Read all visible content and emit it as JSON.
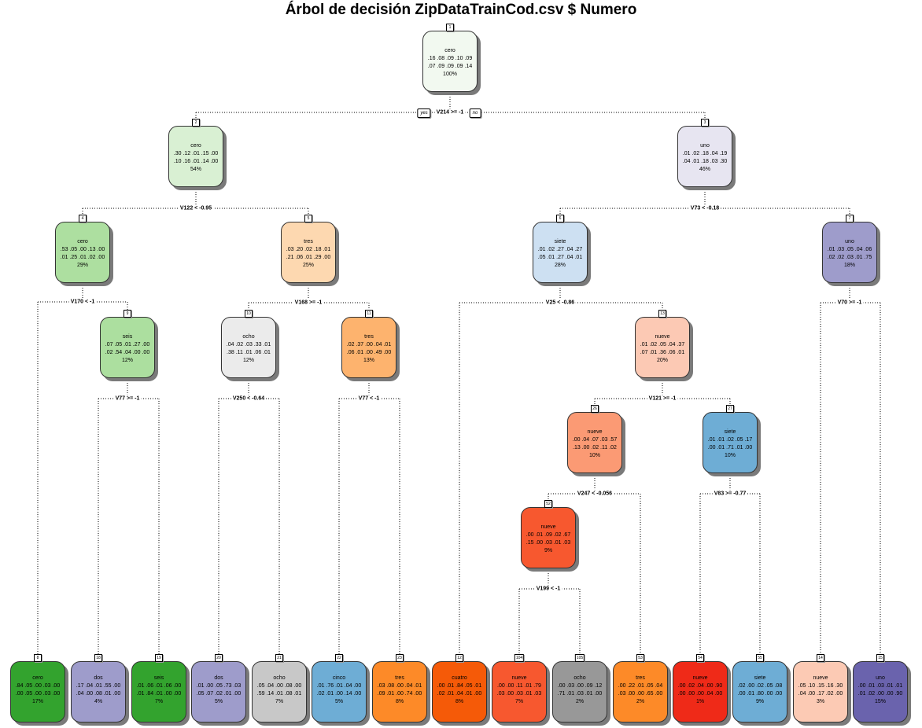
{
  "title": "Árbol de decisión ZipDataTrainCod.csv $ Numero",
  "yes_label": "yes",
  "no_label": "no",
  "nodes": [
    {
      "id": "1",
      "cls": "cero",
      "r1": ".16 .08 .09 .10 .09",
      "r2": ".07 .09 .09 .09 .14",
      "pct": "100%",
      "fill": "#f2f9f0",
      "split": "V214 >= -1"
    },
    {
      "id": "2",
      "cls": "cero",
      "r1": ".30 .12 .01 .15 .00",
      "r2": ".10 .16 .01 .14 .00",
      "pct": "54%",
      "fill": "#d9f0d3",
      "split": "V122 < -0.95"
    },
    {
      "id": "3",
      "cls": "uno",
      "r1": ".01 .02 .18 .04 .19",
      "r2": ".04 .01 .18 .03 .30",
      "pct": "46%",
      "fill": "#e7e5f1",
      "split": "V73 < -0.18"
    },
    {
      "id": "4",
      "cls": "cero",
      "r1": ".53 .05 .00 .13 .00",
      "r2": ".01 .25 .01 .02 .00",
      "pct": "29%",
      "fill": "#addfa0",
      "split": "V170 < -1"
    },
    {
      "id": "5",
      "cls": "tres",
      "r1": ".03 .20 .02 .18 .01",
      "r2": ".21 .06 .01 .29 .00",
      "pct": "25%",
      "fill": "#fdd8b0",
      "split": "V168 >= -1"
    },
    {
      "id": "6",
      "cls": "siete",
      "r1": ".01 .02 .27 .04 .27",
      "r2": ".05 .01 .27 .04 .01",
      "pct": "28%",
      "fill": "#cde0f2",
      "split": "V25 < -0.86"
    },
    {
      "id": "7",
      "cls": "uno",
      "r1": ".01 .03 .05 .04 .06",
      "r2": ".02 .02 .03 .01 .75",
      "pct": "18%",
      "fill": "#9e9ccb",
      "split": "V70 >= -1"
    },
    {
      "id": "9",
      "cls": "seis",
      "r1": ".07 .05 .01 .27 .00",
      "r2": ".02 .54 .04 .00 .00",
      "pct": "12%",
      "fill": "#acdf9f",
      "split": "V77 >= -1"
    },
    {
      "id": "10",
      "cls": "ocho",
      "r1": ".04 .02 .03 .33 .01",
      "r2": ".38 .11 .01 .06 .01",
      "pct": "12%",
      "fill": "#ebebeb",
      "split": "V250 < -0.64"
    },
    {
      "id": "11",
      "cls": "tres",
      "r1": ".02 .37 .00 .04 .01",
      "r2": ".06 .01 .00 .49 .00",
      "pct": "13%",
      "fill": "#fdb36e",
      "split": "V77 < -1"
    },
    {
      "id": "13",
      "cls": "nueve",
      "r1": ".01 .02 .05 .04 .37",
      "r2": ".07 .01 .36 .06 .01",
      "pct": "20%",
      "fill": "#fcc9b4",
      "split": "V121 >= -1"
    },
    {
      "id": "26",
      "cls": "nueve",
      "r1": ".00 .04 .07 .03 .57",
      "r2": ".13 .00 .02 .11 .02",
      "pct": "10%",
      "fill": "#fb9a74",
      "split": "V247 < -0.056"
    },
    {
      "id": "27",
      "cls": "siete",
      "r1": ".01 .01 .02 .05 .17",
      "r2": ".00 .01 .71 .01 .00",
      "pct": "10%",
      "fill": "#6eadd5",
      "split": "V83 >= -0.77"
    },
    {
      "id": "52",
      "cls": "nueve",
      "r1": ".00 .01 .09 .02 .67",
      "r2": ".15 .00 .03 .01 .03",
      "pct": "9%",
      "fill": "#f7582f",
      "split": "V199 < -1"
    },
    {
      "id": "8",
      "cls": "cero",
      "r1": ".84 .05 .00 .03 .00",
      "r2": ".00 .05 .00 .03 .00",
      "pct": "17%",
      "fill": "#33a32e"
    },
    {
      "id": "18",
      "cls": "dos",
      "r1": ".17 .04 .01 .55 .00",
      "r2": ".04 .00 .08 .01 .00",
      "pct": "4%",
      "fill": "#9e9ccb"
    },
    {
      "id": "19",
      "cls": "seis",
      "r1": ".01 .06 .01 .06 .00",
      "r2": ".01 .84 .01 .00 .00",
      "pct": "7%",
      "fill": "#33a32e"
    },
    {
      "id": "20",
      "cls": "dos",
      "r1": ".01 .00 .05 .73 .03",
      "r2": ".05 .07 .02 .01 .00",
      "pct": "5%",
      "fill": "#9e9ccb"
    },
    {
      "id": "21",
      "cls": "ocho",
      "r1": ".05 .04 .00 .08 .00",
      "r2": ".59 .14 .01 .08 .01",
      "pct": "7%",
      "fill": "#c8c8c8"
    },
    {
      "id": "22",
      "cls": "cinco",
      "r1": ".01 .76 .01 .04 .00",
      "r2": ".02 .01 .00 .14 .00",
      "pct": "5%",
      "fill": "#6eadd5"
    },
    {
      "id": "23",
      "cls": "tres",
      "r1": ".03 .08 .00 .04 .01",
      "r2": ".09 .01 .00 .74 .00",
      "pct": "8%",
      "fill": "#fd8a28"
    },
    {
      "id": "12",
      "cls": "cuatro",
      "r1": ".00 .01 .84 .05 .01",
      "r2": ".02 .01 .04 .01 .00",
      "pct": "8%",
      "fill": "#f55a08"
    },
    {
      "id": "104",
      "cls": "nueve",
      "r1": ".00 .00 .11 .01 .79",
      "r2": ".03 .00 .03 .01 .03",
      "pct": "7%",
      "fill": "#f7582f"
    },
    {
      "id": "105",
      "cls": "ocho",
      "r1": ".00 .03 .00 .09 .12",
      "r2": ".71 .01 .03 .01 .00",
      "pct": "2%",
      "fill": "#989898"
    },
    {
      "id": "53",
      "cls": "tres",
      "r1": ".00 .22 .01 .05 .04",
      "r2": ".03 .00 .00 .65 .00",
      "pct": "2%",
      "fill": "#fd8a28"
    },
    {
      "id": "54",
      "cls": "nueve",
      "r1": ".00 .02 .04 .00 .90",
      "r2": ".00 .00 .00 .04 .00",
      "pct": "1%",
      "fill": "#ef2a18"
    },
    {
      "id": "55",
      "cls": "siete",
      "r1": ".02 .00 .02 .05 .08",
      "r2": ".00 .01 .80 .00 .00",
      "pct": "9%",
      "fill": "#6eadd5"
    },
    {
      "id": "14",
      "cls": "nueve",
      "r1": ".05 .10 .15 .16 .30",
      "r2": ".04 .00 .17 .02 .00",
      "pct": "3%",
      "fill": "#fccab4"
    },
    {
      "id": "15",
      "cls": "uno",
      "r1": ".00 .01 .03 .01 .01",
      "r2": ".01 .02 .00 .00 .90",
      "pct": "15%",
      "fill": "#6a63ad"
    }
  ]
}
